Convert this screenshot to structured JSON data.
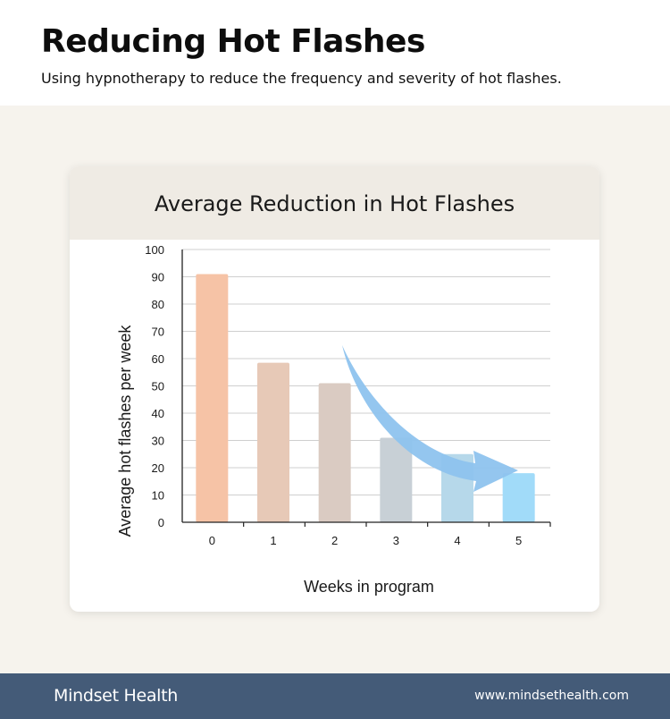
{
  "header": {
    "title": "Reducing Hot Flashes",
    "subtitle": "Using hypnotherapy to reduce the frequency and severity of hot flashes."
  },
  "card": {
    "title": "Average Reduction in Hot Flashes"
  },
  "chart_data": {
    "type": "bar",
    "title": "Average Reduction in Hot Flashes",
    "categories": [
      "0",
      "1",
      "2",
      "3",
      "4",
      "5"
    ],
    "values": [
      91,
      58.5,
      51,
      31,
      25,
      18
    ],
    "bar_colors": [
      "#f6c3a6",
      "#e7c9b7",
      "#dacbc2",
      "#c8d0d6",
      "#b6d8ea",
      "#a1dbf9"
    ],
    "xlabel": "Weeks in program",
    "ylabel": "Average hot flashes per week",
    "ylim": [
      0,
      100
    ],
    "yticks": [
      0,
      10,
      20,
      30,
      40,
      50,
      60,
      70,
      80,
      90,
      100
    ],
    "grid": true,
    "legend": "none",
    "annotation": "downward arrow indicating decreasing trend"
  },
  "colors": {
    "background": "#f6f3ed",
    "card_header": "#efebe4",
    "footer": "#445b78",
    "arrow": "#8ec3ee",
    "grid": "#cfcfcf"
  },
  "footer": {
    "brand": "Mindset Health",
    "website": "www.mindsethealth.com"
  }
}
